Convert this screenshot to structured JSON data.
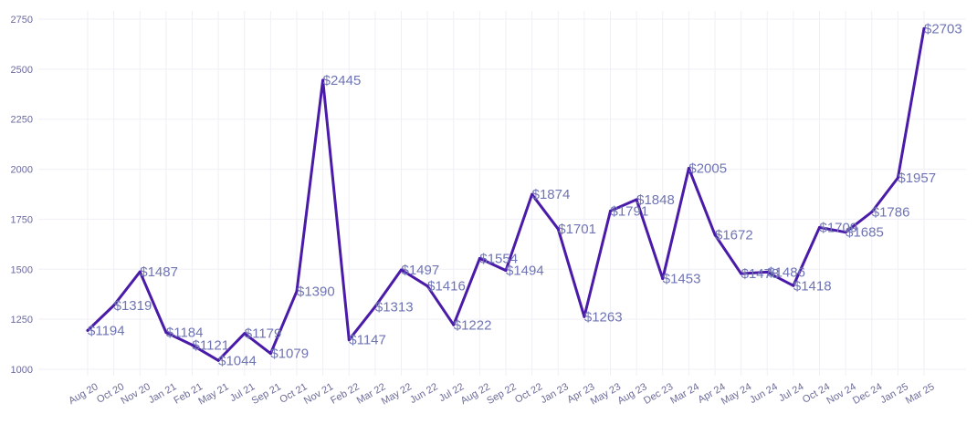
{
  "chart_data": {
    "type": "line",
    "title": "",
    "xlabel": "",
    "ylabel": "",
    "ylim": [
      1000,
      2750
    ],
    "yticks": [
      1000,
      1250,
      1500,
      1750,
      2000,
      2250,
      2500,
      2750
    ],
    "grid": true,
    "legend": "none",
    "line_color": "#4a1aa8",
    "label_color": "#6f74b4",
    "value_prefix": "$",
    "categories": [
      "Aug 20",
      "Oct 20",
      "Nov 20",
      "Jan 21",
      "Feb 21",
      "May 21",
      "Jul 21",
      "Sep 21",
      "Oct 21",
      "Nov 21",
      "Feb 22",
      "Mar 22",
      "May 22",
      "Jun 22",
      "Jul 22",
      "Aug 22",
      "Sep 22",
      "Oct 22",
      "Jan 23",
      "Apr 23",
      "May 23",
      "Aug 23",
      "Dec 23",
      "Mar 24",
      "Apr 24",
      "May 24",
      "Jun 24",
      "Jul 24",
      "Oct 24",
      "Nov 24",
      "Dec 24",
      "Jan 25",
      "Mar 25"
    ],
    "values": [
      1194,
      1319,
      1487,
      1184,
      1121,
      1044,
      1179,
      1079,
      1390,
      2445,
      1147,
      1313,
      1497,
      1416,
      1222,
      1554,
      1494,
      1874,
      1701,
      1263,
      1791,
      1848,
      1453,
      2005,
      1672,
      1478,
      1486,
      1418,
      1709,
      1685,
      1786,
      1957,
      2703
    ]
  }
}
